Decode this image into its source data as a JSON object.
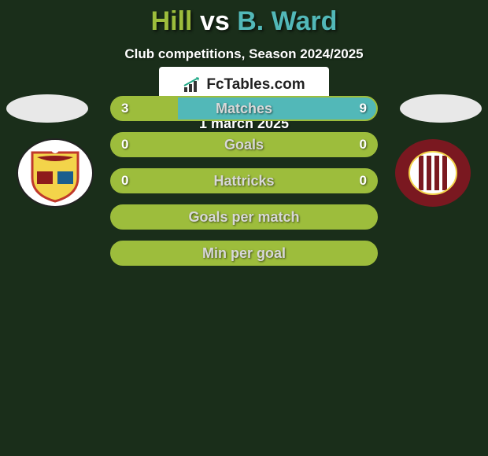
{
  "title": {
    "player1": "Hill",
    "vs": "vs",
    "player2": "B. Ward",
    "player1_color": "#9dbd3c",
    "vs_color": "#ffffff",
    "player2_color": "#52b8b8"
  },
  "subtitle": "Club competitions, Season 2024/2025",
  "background_color": "#1a2e1a",
  "bars": [
    {
      "label": "Matches",
      "left": "3",
      "right": "9",
      "bg": "#9dbd3c",
      "fill_color": "#52b8b8",
      "fill_from": 0.25,
      "show_values": true
    },
    {
      "label": "Goals",
      "left": "0",
      "right": "0",
      "bg": "#9dbd3c",
      "fill_color": "#52b8b8",
      "fill_from": 0.0,
      "show_values": true
    },
    {
      "label": "Hattricks",
      "left": "0",
      "right": "0",
      "bg": "#9dbd3c",
      "fill_color": "#52b8b8",
      "fill_from": 0.0,
      "show_values": true
    },
    {
      "label": "Goals per match",
      "left": "",
      "right": "",
      "bg": "#9dbd3c",
      "fill_color": "#52b8b8",
      "fill_from": 0.0,
      "show_values": false
    },
    {
      "label": "Min per goal",
      "left": "",
      "right": "",
      "bg": "#9dbd3c",
      "fill_color": "#52b8b8",
      "fill_from": 0.0,
      "show_values": false
    }
  ],
  "crest_left": {
    "shield_fill": "#f3d44a",
    "shield_stroke": "#c0392b",
    "accent1": "#8e1b1b",
    "accent2": "#1b5e8e",
    "accent3": "#ffffff"
  },
  "crest_right": {
    "outer": "#7a1820",
    "inner": "#ffffff",
    "stripe": "#7a1820"
  },
  "fctables_label": "FcTables.com",
  "date": "1 march 2025"
}
